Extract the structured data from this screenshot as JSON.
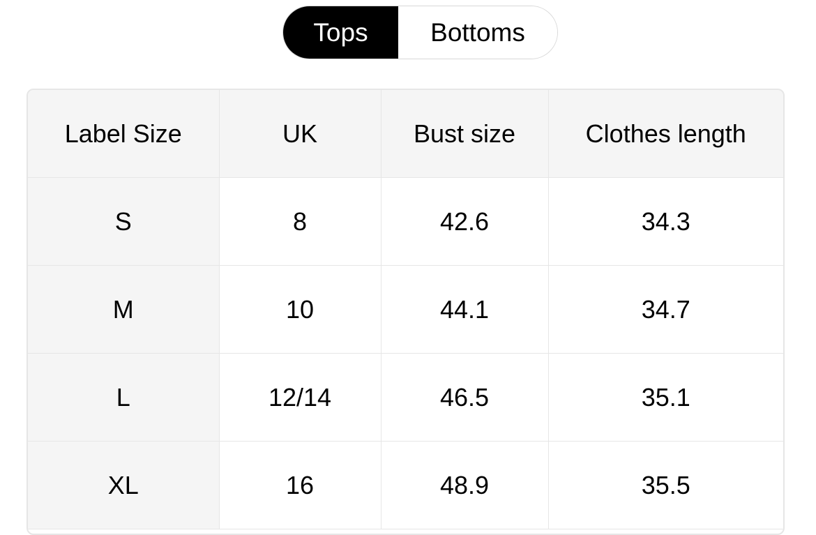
{
  "tabs": [
    {
      "label": "Tops",
      "active": true
    },
    {
      "label": "Bottoms",
      "active": false
    }
  ],
  "table": {
    "headers": [
      "Label Size",
      "UK",
      "Bust size",
      "Clothes length"
    ],
    "rows": [
      [
        "S",
        "8",
        "42.6",
        "34.3"
      ],
      [
        "M",
        "10",
        "44.1",
        "34.7"
      ],
      [
        "L",
        "12/14",
        "46.5",
        "35.1"
      ],
      [
        "XL",
        "16",
        "48.9",
        "35.5"
      ]
    ]
  },
  "colors": {
    "active_tab_bg": "#000000",
    "header_bg": "#f5f5f5",
    "border": "#e6e6e6"
  }
}
